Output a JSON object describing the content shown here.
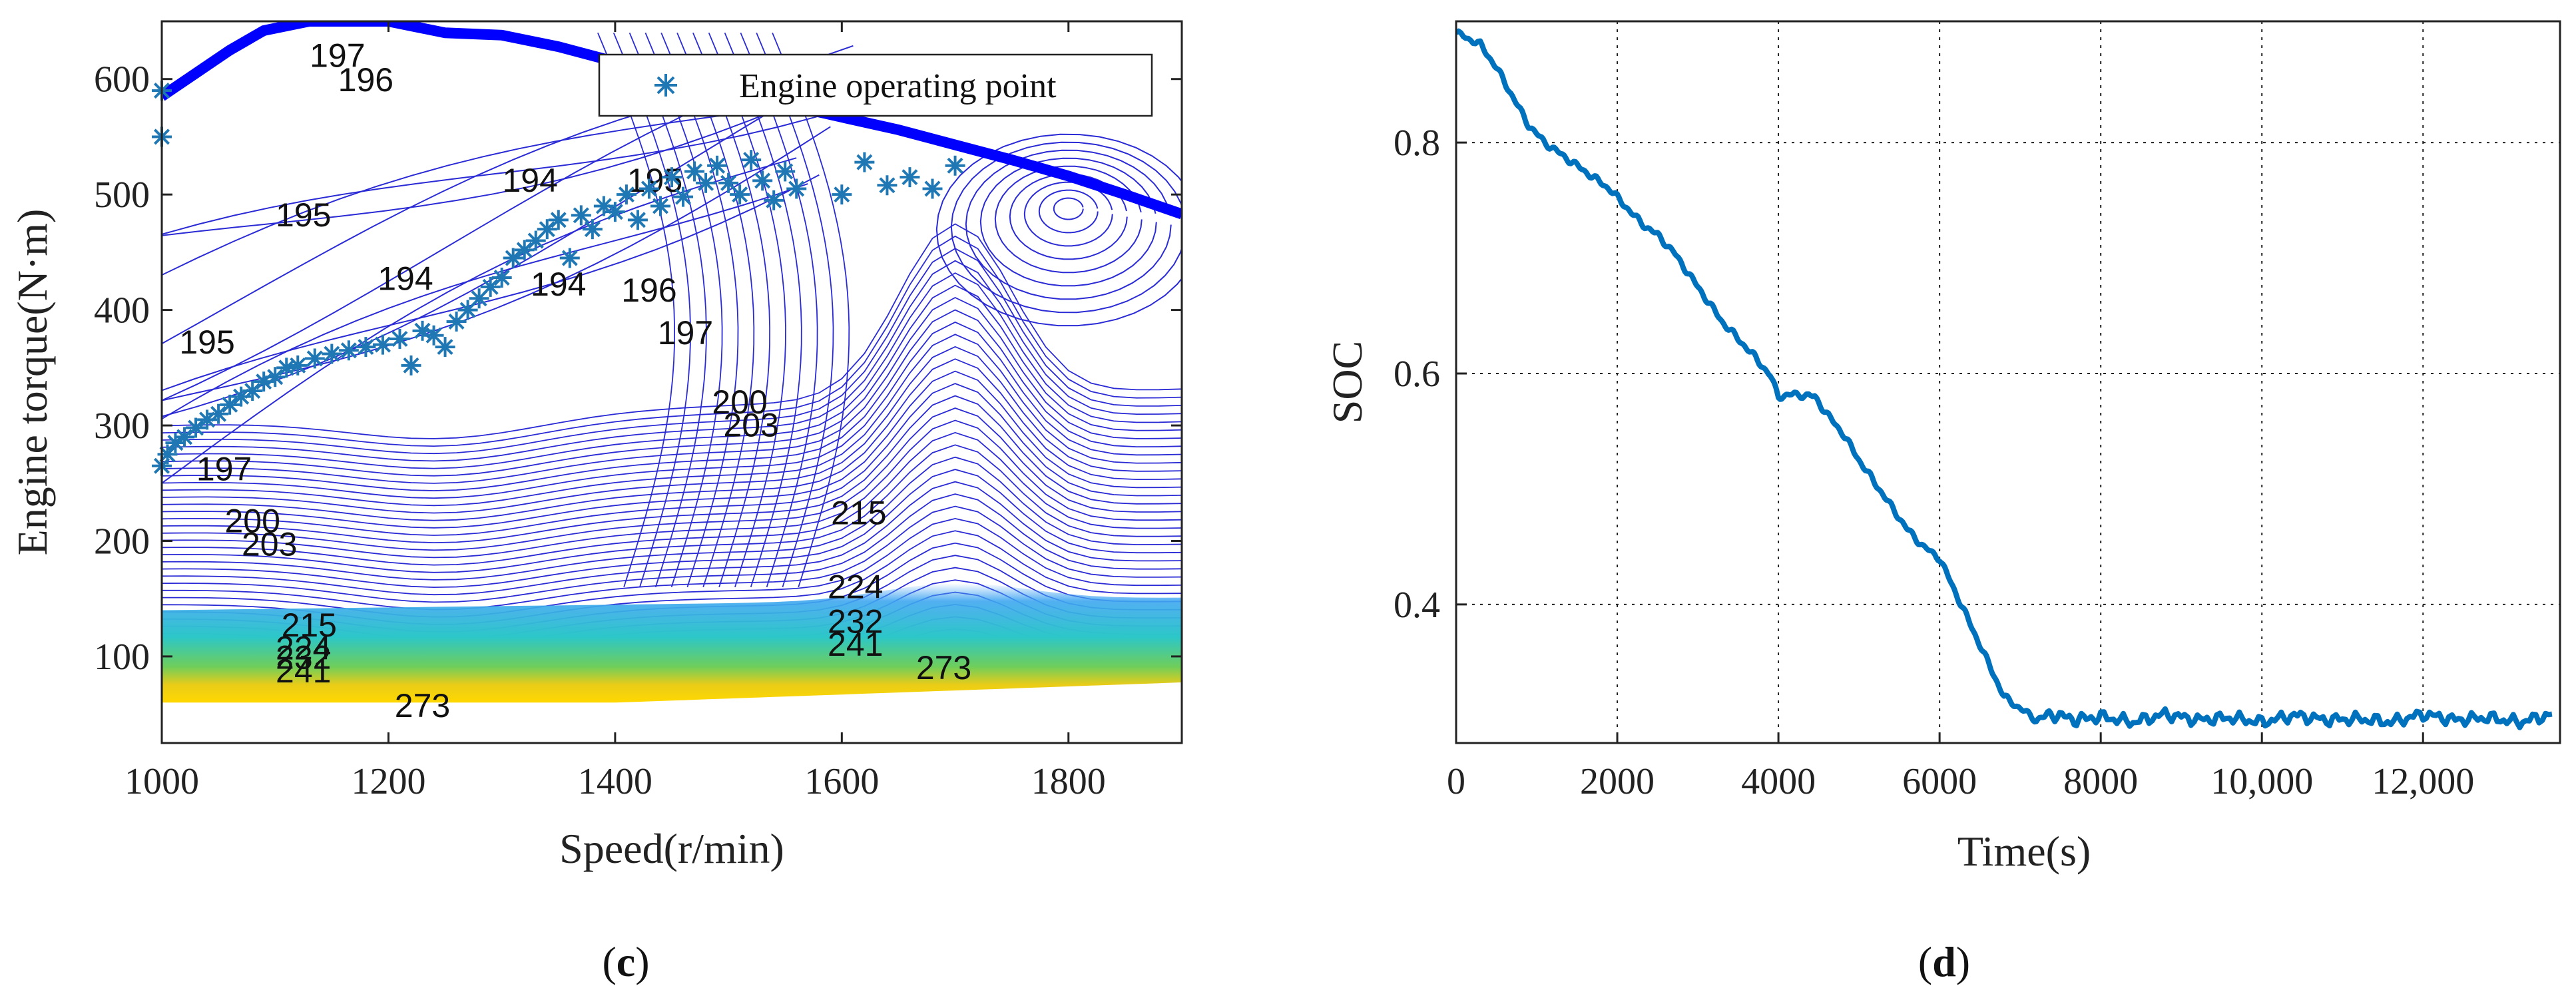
{
  "chart_data": [
    {
      "type": "contour",
      "panel_label": "(c)",
      "panel_letter": "c",
      "xlabel": "Speed(r/min)",
      "ylabel": "Engine torque(N·m)",
      "xlim": [
        1000,
        1900
      ],
      "ylim": [
        25,
        650
      ],
      "xticks": [
        1000,
        1200,
        1400,
        1600,
        1800
      ],
      "yticks": [
        100,
        200,
        300,
        400,
        500,
        600
      ],
      "legend": {
        "label": "Engine operating point",
        "position": "top-right",
        "marker": "asterisk"
      },
      "colors": {
        "contour": "#2b2bd6",
        "max_torque": "#0000ff",
        "points": "#1f77b4",
        "warm": "#f3c800",
        "mid": "#1fb5d0",
        "hot": "#ffd000"
      },
      "contour_labels": [
        {
          "text": "197",
          "x": 1155,
          "y": 618
        },
        {
          "text": "196",
          "x": 1180,
          "y": 597
        },
        {
          "text": "195",
          "x": 1125,
          "y": 480
        },
        {
          "text": "195",
          "x": 1040,
          "y": 370
        },
        {
          "text": "194",
          "x": 1215,
          "y": 425
        },
        {
          "text": "194",
          "x": 1350,
          "y": 420
        },
        {
          "text": "194",
          "x": 1325,
          "y": 510
        },
        {
          "text": "195",
          "x": 1435,
          "y": 510
        },
        {
          "text": "196",
          "x": 1430,
          "y": 415
        },
        {
          "text": "197",
          "x": 1462,
          "y": 378
        },
        {
          "text": "197",
          "x": 1055,
          "y": 260
        },
        {
          "text": "200",
          "x": 1080,
          "y": 215
        },
        {
          "text": "203",
          "x": 1095,
          "y": 195
        },
        {
          "text": "200",
          "x": 1510,
          "y": 318
        },
        {
          "text": "203",
          "x": 1520,
          "y": 298
        },
        {
          "text": "215",
          "x": 1615,
          "y": 222
        },
        {
          "text": "224",
          "x": 1612,
          "y": 158
        },
        {
          "text": "232",
          "x": 1612,
          "y": 128
        },
        {
          "text": "241",
          "x": 1612,
          "y": 108
        },
        {
          "text": "215",
          "x": 1130,
          "y": 125
        },
        {
          "text": "224",
          "x": 1125,
          "y": 105
        },
        {
          "text": "232",
          "x": 1125,
          "y": 97
        },
        {
          "text": "241",
          "x": 1125,
          "y": 85
        },
        {
          "text": "273",
          "x": 1230,
          "y": 55
        },
        {
          "text": "273",
          "x": 1690,
          "y": 88
        }
      ],
      "max_torque_curve": {
        "x": [
          1000,
          1030,
          1060,
          1090,
          1130,
          1200,
          1250,
          1300,
          1350,
          1400,
          1450,
          1500,
          1550,
          1600,
          1650,
          1700,
          1750,
          1800,
          1850,
          1900
        ],
        "y": [
          585,
          605,
          625,
          642,
          650,
          650,
          640,
          638,
          628,
          615,
          602,
          590,
          578,
          567,
          556,
          543,
          530,
          516,
          500,
          483
        ]
      },
      "operating_points": {
        "x": [
          1000,
          1000,
          1000,
          1005,
          1012,
          1020,
          1030,
          1040,
          1050,
          1060,
          1070,
          1080,
          1090,
          1100,
          1110,
          1120,
          1135,
          1150,
          1165,
          1180,
          1195,
          1210,
          1220,
          1230,
          1240,
          1250,
          1260,
          1270,
          1280,
          1290,
          1300,
          1310,
          1320,
          1330,
          1340,
          1350,
          1360,
          1370,
          1380,
          1390,
          1400,
          1410,
          1420,
          1430,
          1440,
          1450,
          1460,
          1470,
          1480,
          1490,
          1500,
          1510,
          1520,
          1530,
          1540,
          1550,
          1560,
          1600,
          1620,
          1640,
          1660,
          1680,
          1700
        ],
        "y": [
          590,
          550,
          265,
          275,
          285,
          290,
          298,
          305,
          310,
          318,
          325,
          330,
          338,
          342,
          350,
          352,
          358,
          362,
          365,
          368,
          370,
          375,
          352,
          382,
          378,
          368,
          390,
          400,
          410,
          420,
          428,
          445,
          452,
          460,
          470,
          478,
          445,
          482,
          470,
          490,
          485,
          500,
          478,
          505,
          490,
          515,
          498,
          520,
          510,
          525,
          510,
          500,
          530,
          512,
          495,
          520,
          505,
          500,
          528,
          508,
          515,
          505,
          525
        ]
      }
    },
    {
      "type": "line",
      "panel_label": "(d)",
      "panel_letter": "d",
      "xlabel": "Time(s)",
      "ylabel": "SOC",
      "xlim": [
        0,
        13700
      ],
      "ylim": [
        0.28,
        0.905
      ],
      "xticks": [
        0,
        2000,
        4000,
        6000,
        8000,
        10000,
        12000
      ],
      "xtick_labels": [
        "0",
        "2000",
        "4000",
        "6000",
        "8000",
        "10,000",
        "12,000"
      ],
      "yticks": [
        0.4,
        0.6,
        0.8
      ],
      "ytick_labels": [
        "0.4",
        "0.6",
        "0.8"
      ],
      "grid": true,
      "colors": {
        "line": "#0072bd",
        "grid": "#222222"
      },
      "series": [
        {
          "name": "SOC",
          "x": [
            0,
            300,
            500,
            700,
            900,
            1100,
            1300,
            1500,
            1700,
            1900,
            2100,
            2300,
            2500,
            2700,
            2900,
            3100,
            3300,
            3500,
            3700,
            3900,
            4000,
            4200,
            4450,
            4600,
            4800,
            5000,
            5200,
            5400,
            5600,
            5800,
            6000,
            6200,
            6400,
            6600,
            6800,
            7000,
            7200,
            7400,
            7700,
            8000,
            8400,
            8800,
            9200,
            9600,
            10000,
            10400,
            10800,
            11200,
            11600,
            12000,
            12400,
            12800,
            13200,
            13600
          ],
          "y": [
            0.895,
            0.885,
            0.865,
            0.84,
            0.815,
            0.8,
            0.79,
            0.78,
            0.77,
            0.76,
            0.745,
            0.73,
            0.72,
            0.705,
            0.685,
            0.665,
            0.645,
            0.63,
            0.615,
            0.598,
            0.58,
            0.582,
            0.58,
            0.565,
            0.548,
            0.525,
            0.505,
            0.485,
            0.465,
            0.45,
            0.44,
            0.41,
            0.38,
            0.35,
            0.32,
            0.31,
            0.3,
            0.305,
            0.3,
            0.303,
            0.298,
            0.305,
            0.3,
            0.302,
            0.298,
            0.304,
            0.3,
            0.301,
            0.298,
            0.305,
            0.3,
            0.302,
            0.298,
            0.305
          ]
        }
      ]
    }
  ]
}
